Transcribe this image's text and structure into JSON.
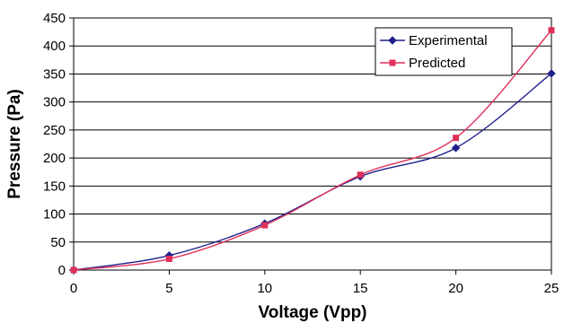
{
  "chart_data": {
    "type": "line",
    "title": "",
    "xlabel": "Voltage (Vpp)",
    "ylabel": "Pressure (Pa)",
    "xlim": [
      0,
      25
    ],
    "ylim": [
      0,
      450
    ],
    "xticks": [
      0,
      5,
      10,
      15,
      20,
      25
    ],
    "yticks": [
      0,
      50,
      100,
      150,
      200,
      250,
      300,
      350,
      400,
      450
    ],
    "grid": "horizontal",
    "smooth": true,
    "legend_position": "top-right",
    "series": [
      {
        "name": "Experimental",
        "color": "#1f1f8c",
        "marker": "diamond",
        "x": [
          0,
          5,
          10,
          15,
          20,
          25
        ],
        "y": [
          0,
          26,
          83,
          167,
          218,
          351
        ]
      },
      {
        "name": "Predicted",
        "color": "#e0305a",
        "marker": "square",
        "x": [
          0,
          5,
          10,
          15,
          20,
          25
        ],
        "y": [
          0,
          20,
          80,
          170,
          236,
          428
        ]
      }
    ]
  }
}
